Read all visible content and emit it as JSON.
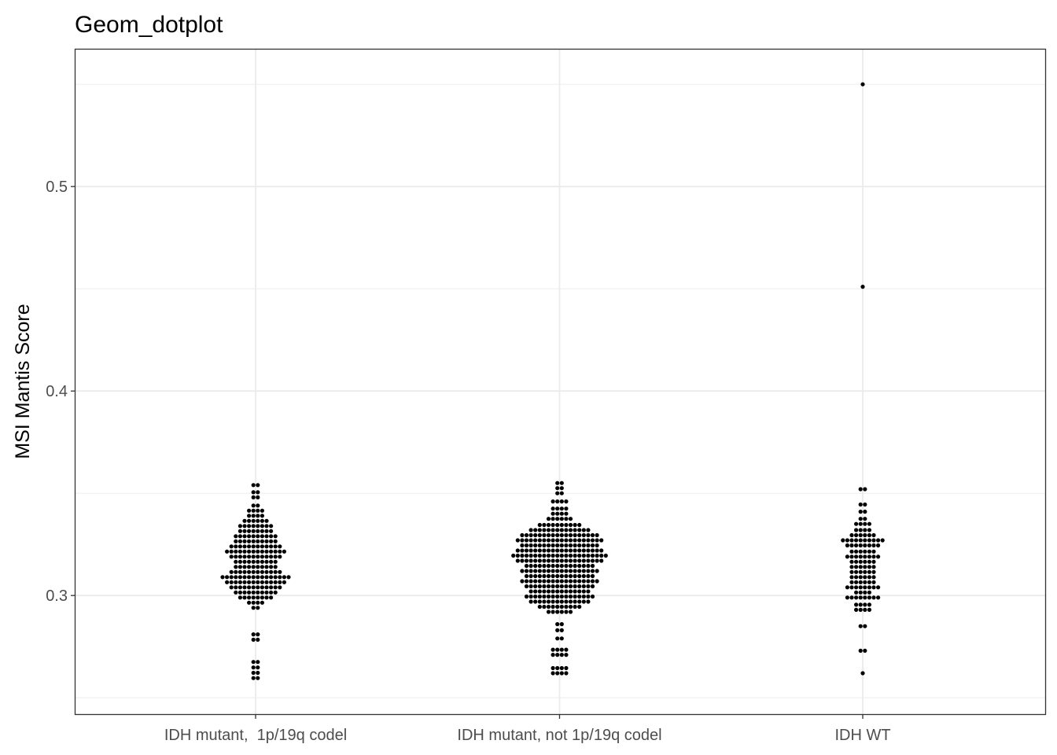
{
  "chart_data": {
    "type": "dotplot",
    "title": "Geom_dotplot",
    "xlabel": "",
    "ylabel": "MSI Mantis Score",
    "categories": [
      "IDH mutant,  1p/19q codel",
      "IDH mutant, not 1p/19q codel",
      "IDH WT"
    ],
    "ylim": [
      0.242,
      0.567
    ],
    "yticks": [
      0.3,
      0.4,
      0.5
    ],
    "ytick_labels": [
      "0.3",
      "0.4",
      "0.5"
    ],
    "grid": true,
    "colors": {
      "dots": "#000000",
      "grid": "#ebebeb",
      "panel_border": "#333333",
      "tick_text": "#4d4d4d"
    },
    "series": [
      {
        "category": "IDH mutant,  1p/19q codel",
        "bins": [
          [
            0.2596,
            2
          ],
          [
            0.2622,
            2
          ],
          [
            0.2648,
            2
          ],
          [
            0.2675,
            2
          ],
          [
            0.2784,
            2
          ],
          [
            0.281,
            2
          ],
          [
            0.294,
            2
          ],
          [
            0.2965,
            4
          ],
          [
            0.299,
            8
          ],
          [
            0.3015,
            10
          ],
          [
            0.304,
            12
          ],
          [
            0.3065,
            14
          ],
          [
            0.309,
            16
          ],
          [
            0.3115,
            12
          ],
          [
            0.314,
            10
          ],
          [
            0.3165,
            10
          ],
          [
            0.319,
            12
          ],
          [
            0.3215,
            14
          ],
          [
            0.324,
            12
          ],
          [
            0.3265,
            10
          ],
          [
            0.329,
            10
          ],
          [
            0.3315,
            8
          ],
          [
            0.334,
            8
          ],
          [
            0.3365,
            6
          ],
          [
            0.339,
            4
          ],
          [
            0.3415,
            4
          ],
          [
            0.344,
            2
          ],
          [
            0.348,
            2
          ],
          [
            0.3505,
            2
          ],
          [
            0.354,
            2
          ]
        ]
      },
      {
        "category": "IDH mutant, not 1p/19q codel",
        "bins": [
          [
            0.262,
            4
          ],
          [
            0.2645,
            4
          ],
          [
            0.271,
            4
          ],
          [
            0.2735,
            4
          ],
          [
            0.279,
            2
          ],
          [
            0.283,
            2
          ],
          [
            0.286,
            2
          ],
          [
            0.292,
            6
          ],
          [
            0.2945,
            10
          ],
          [
            0.297,
            14
          ],
          [
            0.2995,
            16
          ],
          [
            0.302,
            14
          ],
          [
            0.3045,
            16
          ],
          [
            0.307,
            18
          ],
          [
            0.3095,
            16
          ],
          [
            0.312,
            18
          ],
          [
            0.3145,
            16
          ],
          [
            0.317,
            20
          ],
          [
            0.3195,
            22
          ],
          [
            0.322,
            20
          ],
          [
            0.3245,
            18
          ],
          [
            0.327,
            20
          ],
          [
            0.3295,
            18
          ],
          [
            0.332,
            14
          ],
          [
            0.3345,
            10
          ],
          [
            0.3375,
            6
          ],
          [
            0.34,
            4
          ],
          [
            0.3425,
            4
          ],
          [
            0.346,
            4
          ],
          [
            0.35,
            2
          ],
          [
            0.3525,
            2
          ],
          [
            0.355,
            2
          ]
        ]
      },
      {
        "category": "IDH WT",
        "bins": [
          [
            0.262,
            1
          ],
          [
            0.273,
            2
          ],
          [
            0.285,
            2
          ],
          [
            0.293,
            4
          ],
          [
            0.2955,
            4
          ],
          [
            0.299,
            8
          ],
          [
            0.3015,
            4
          ],
          [
            0.304,
            8
          ],
          [
            0.3065,
            6
          ],
          [
            0.309,
            6
          ],
          [
            0.3115,
            6
          ],
          [
            0.314,
            6
          ],
          [
            0.3165,
            6
          ],
          [
            0.319,
            8
          ],
          [
            0.3215,
            6
          ],
          [
            0.3245,
            8
          ],
          [
            0.327,
            10
          ],
          [
            0.3295,
            6
          ],
          [
            0.332,
            4
          ],
          [
            0.335,
            4
          ],
          [
            0.3375,
            2
          ],
          [
            0.341,
            2
          ],
          [
            0.3445,
            2
          ],
          [
            0.352,
            2
          ],
          [
            0.451,
            1
          ],
          [
            0.55,
            1
          ]
        ]
      }
    ]
  }
}
